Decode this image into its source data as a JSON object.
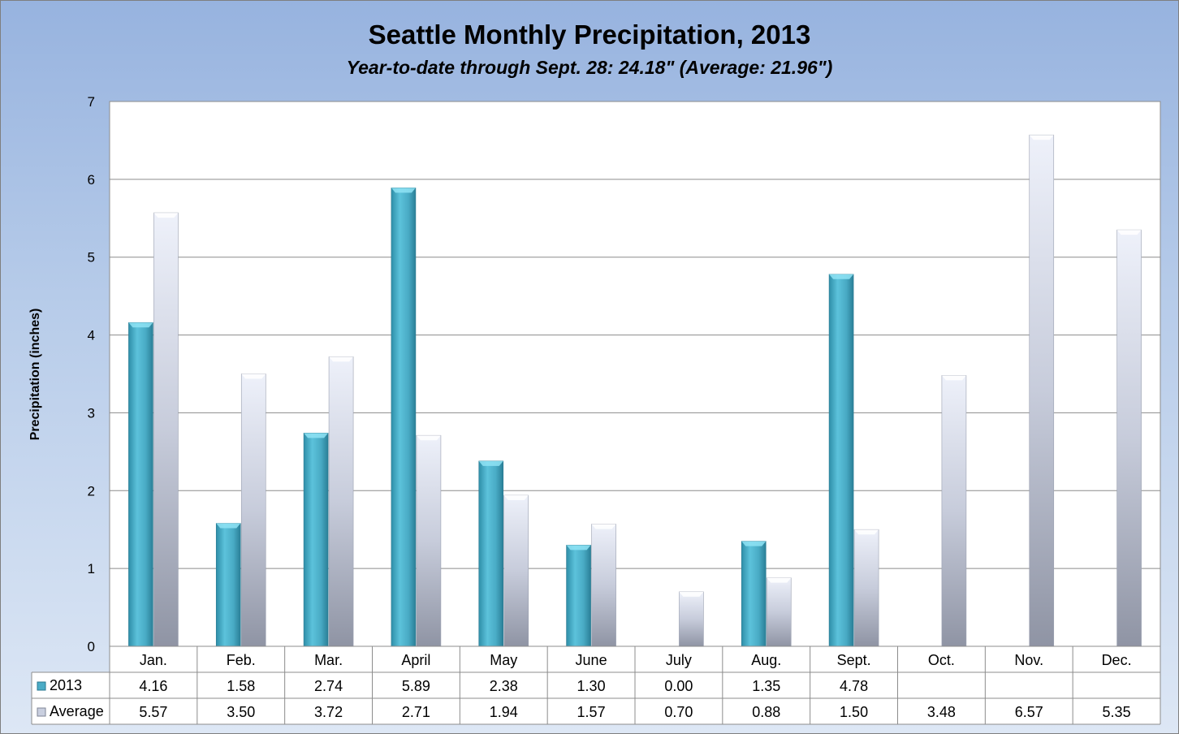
{
  "chart_data": {
    "type": "bar",
    "title": "Seattle Monthly Precipitation, 2013",
    "subtitle": "Year-to-date through Sept. 28: 24.18\" (Average: 21.96\")",
    "ylabel": "Precipitation (inches)",
    "xlabel": "",
    "ylim": [
      0,
      7
    ],
    "yticks": [
      "0",
      "1",
      "2",
      "3",
      "4",
      "5",
      "6",
      "7"
    ],
    "grid": true,
    "legend": "data-table",
    "categories": [
      "Jan.",
      "Feb.",
      "Mar.",
      "April",
      "May",
      "June",
      "July",
      "Aug.",
      "Sept.",
      "Oct.",
      "Nov.",
      "Dec."
    ],
    "series": [
      {
        "name": "2013",
        "color": "#4bacc6",
        "values": [
          4.16,
          1.58,
          2.74,
          5.89,
          2.38,
          1.3,
          0.0,
          1.35,
          4.78,
          null,
          null,
          null
        ],
        "labels": [
          "4.16",
          "1.58",
          "2.74",
          "5.89",
          "2.38",
          "1.30",
          "0.00",
          "1.35",
          "4.78",
          "",
          "",
          ""
        ]
      },
      {
        "name": "Average",
        "color": "#c9cfdf",
        "values": [
          5.57,
          3.5,
          3.72,
          2.71,
          1.94,
          1.57,
          0.7,
          0.88,
          1.5,
          3.48,
          6.57,
          5.35
        ],
        "labels": [
          "5.57",
          "3.50",
          "3.72",
          "2.71",
          "1.94",
          "1.57",
          "0.70",
          "0.88",
          "1.50",
          "3.48",
          "6.57",
          "5.35"
        ]
      }
    ]
  }
}
